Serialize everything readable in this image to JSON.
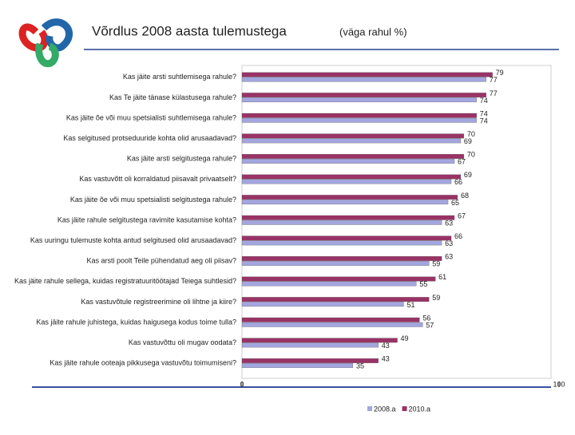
{
  "chart_data": {
    "type": "hbar",
    "title": "Võrdlus 2008 aasta tulemustega",
    "subtitle": "(väga rahul %)",
    "categories": [
      "Kas jäite arsti suhtlemisega rahule?",
      "Kas Te jäite tänase külastusega rahule?",
      "Kas jäite õe või muu spetsialisti suhtlemisega rahule?",
      "Kas selgitused protseduuride kohta olid arusaadavad?",
      "Kas jäite arsti selgitustega rahule?",
      "Kas vastuvõtt oli korraldatud piisavalt privaatselt?",
      "Kas jäite õe või muu spetsialisti selgitustega rahule?",
      "Kas jäite rahule selgitustega ravimite kasutamise kohta?",
      "Kas uuringu tulemuste kohta antud selgitused olid arusaadavad?",
      "Kas arsti poolt Teile pühendatud aeg oli piisav?",
      "Kas jäite rahule sellega, kuidas registratuuritöötajad Teiega suhtlesid?",
      "Kas vastuvõtule registreerimine oli lihtne ja kiire?",
      "Kas jäite rahule juhistega, kuidas haigusega kodus toime tulla?",
      "Kas vastuvõttu oli mugav oodata?",
      "Kas jäite rahule ooteaja pikkusega vastuvõtu toimumiseni?"
    ],
    "series": [
      {
        "name": "2008.a",
        "color": "#a3a6de",
        "values": [
          77,
          74,
          74,
          69,
          67,
          66,
          65,
          63,
          63,
          59,
          55,
          51,
          57,
          43,
          35
        ]
      },
      {
        "name": "2010.a",
        "color": "#993366",
        "values": [
          79,
          77,
          74,
          70,
          70,
          69,
          68,
          67,
          66,
          63,
          61,
          59,
          56,
          49,
          43
        ]
      }
    ],
    "xlim": [
      0,
      100
    ],
    "xticks": [
      0,
      100
    ],
    "legend": "bottom"
  }
}
